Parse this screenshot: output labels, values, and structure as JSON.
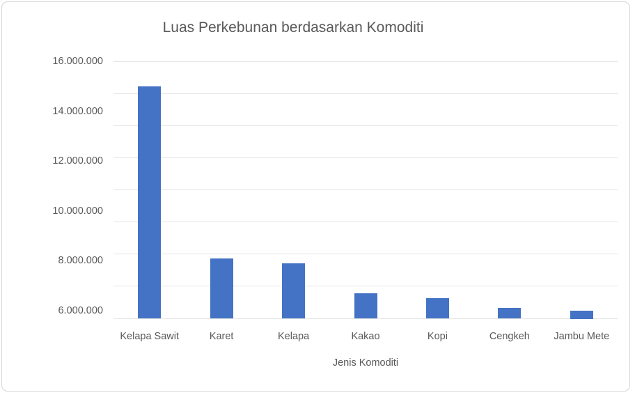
{
  "chart_data": {
    "type": "bar",
    "title": "Luas Perkebunan berdasarkan Komoditi",
    "xlabel": "Jenis Komoditi",
    "ylabel": "",
    "categories": [
      "Kelapa Sawit",
      "Karet",
      "Kelapa",
      "Kakao",
      "Kopi",
      "Cengkeh",
      "Jambu Mete"
    ],
    "values": [
      15000000,
      8100000,
      7900000,
      6700000,
      6500000,
      6100000,
      6000000
    ],
    "y_tick_labels": [
      "16.000.000",
      "14.000.000",
      "12.000.000",
      "10.000.000",
      "8.000.000",
      "6.000.000"
    ],
    "y_tick_values": [
      16000000,
      14000000,
      12000000,
      10000000,
      8000000,
      6000000
    ],
    "ylim": [
      5693000,
      16000000
    ],
    "number_format": "dot-thousands (id-ID)",
    "grid": "horizontal",
    "gridline_count": 9,
    "legend_position": "none",
    "colors": {
      "bar": "#4472C4",
      "gridline": "#e4e4e4",
      "axis_text": "#595959",
      "title_text": "#595959",
      "frame_border": "#d6d6d6",
      "background": "#ffffff"
    }
  }
}
